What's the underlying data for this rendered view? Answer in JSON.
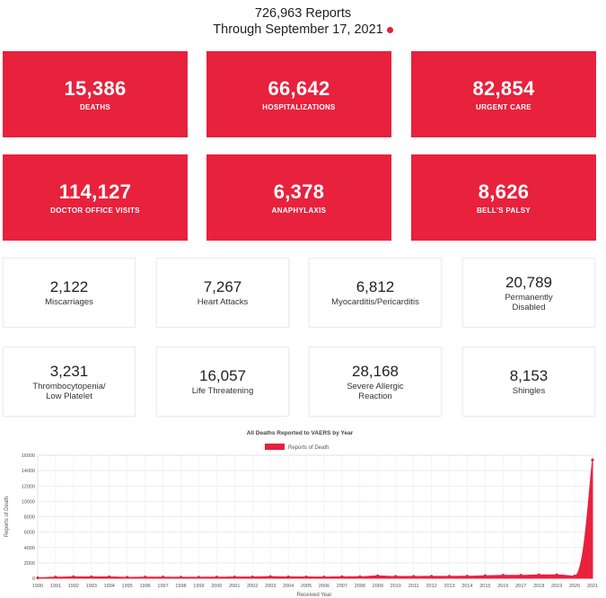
{
  "header": {
    "reports_line": "726,963 Reports",
    "through_line": "Through September 17, 2021"
  },
  "red_cards": [
    {
      "value": "15,386",
      "label": "DEATHS"
    },
    {
      "value": "66,642",
      "label": "HOSPITALIZATIONS"
    },
    {
      "value": "82,854",
      "label": "URGENT CARE"
    },
    {
      "value": "114,127",
      "label": "DOCTOR OFFICE VISITS"
    },
    {
      "value": "6,378",
      "label": "ANAPHYLAXIS"
    },
    {
      "value": "8,626",
      "label": "BELL'S PALSY"
    }
  ],
  "white_cards": [
    {
      "value": "2,122",
      "label": "Miscarriages"
    },
    {
      "value": "7,267",
      "label": "Heart Attacks"
    },
    {
      "value": "6,812",
      "label": "Myocarditis/Pericarditis"
    },
    {
      "value": "20,789",
      "label": "Permanently Disabled"
    },
    {
      "value": "3,231",
      "label": "Thrombocytopenia/ Low Platelet"
    },
    {
      "value": "16,057",
      "label": "Life Threatening"
    },
    {
      "value": "28,168",
      "label": "Severe Allergic Reaction"
    },
    {
      "value": "8,153",
      "label": "Shingles"
    }
  ],
  "colors": {
    "accent": "#e8213d"
  },
  "chart_data": {
    "type": "area",
    "title": "All Deaths Reported to VAERS by Year",
    "xlabel": "Received Year",
    "ylabel": "Reports of Death",
    "legend": "Reports of Death",
    "legend_position": "top",
    "ylim": [
      0,
      16000
    ],
    "yticks": [
      0,
      2000,
      4000,
      6000,
      8000,
      10000,
      12000,
      14000,
      16000
    ],
    "x": [
      "1990",
      "1991",
      "1992",
      "1993",
      "1994",
      "1995",
      "1996",
      "1997",
      "1998",
      "1999",
      "2000",
      "2001",
      "2002",
      "2003",
      "2004",
      "2005",
      "2006",
      "2007",
      "2008",
      "2009",
      "2010",
      "2011",
      "2012",
      "2013",
      "2014",
      "2015",
      "2016",
      "2017",
      "2018",
      "2019",
      "2020",
      "2021"
    ],
    "values": [
      54,
      143,
      189,
      171,
      176,
      121,
      146,
      149,
      128,
      132,
      149,
      157,
      166,
      213,
      181,
      168,
      166,
      187,
      198,
      301,
      230,
      231,
      251,
      250,
      265,
      328,
      377,
      379,
      444,
      438,
      295,
      15386
    ]
  }
}
